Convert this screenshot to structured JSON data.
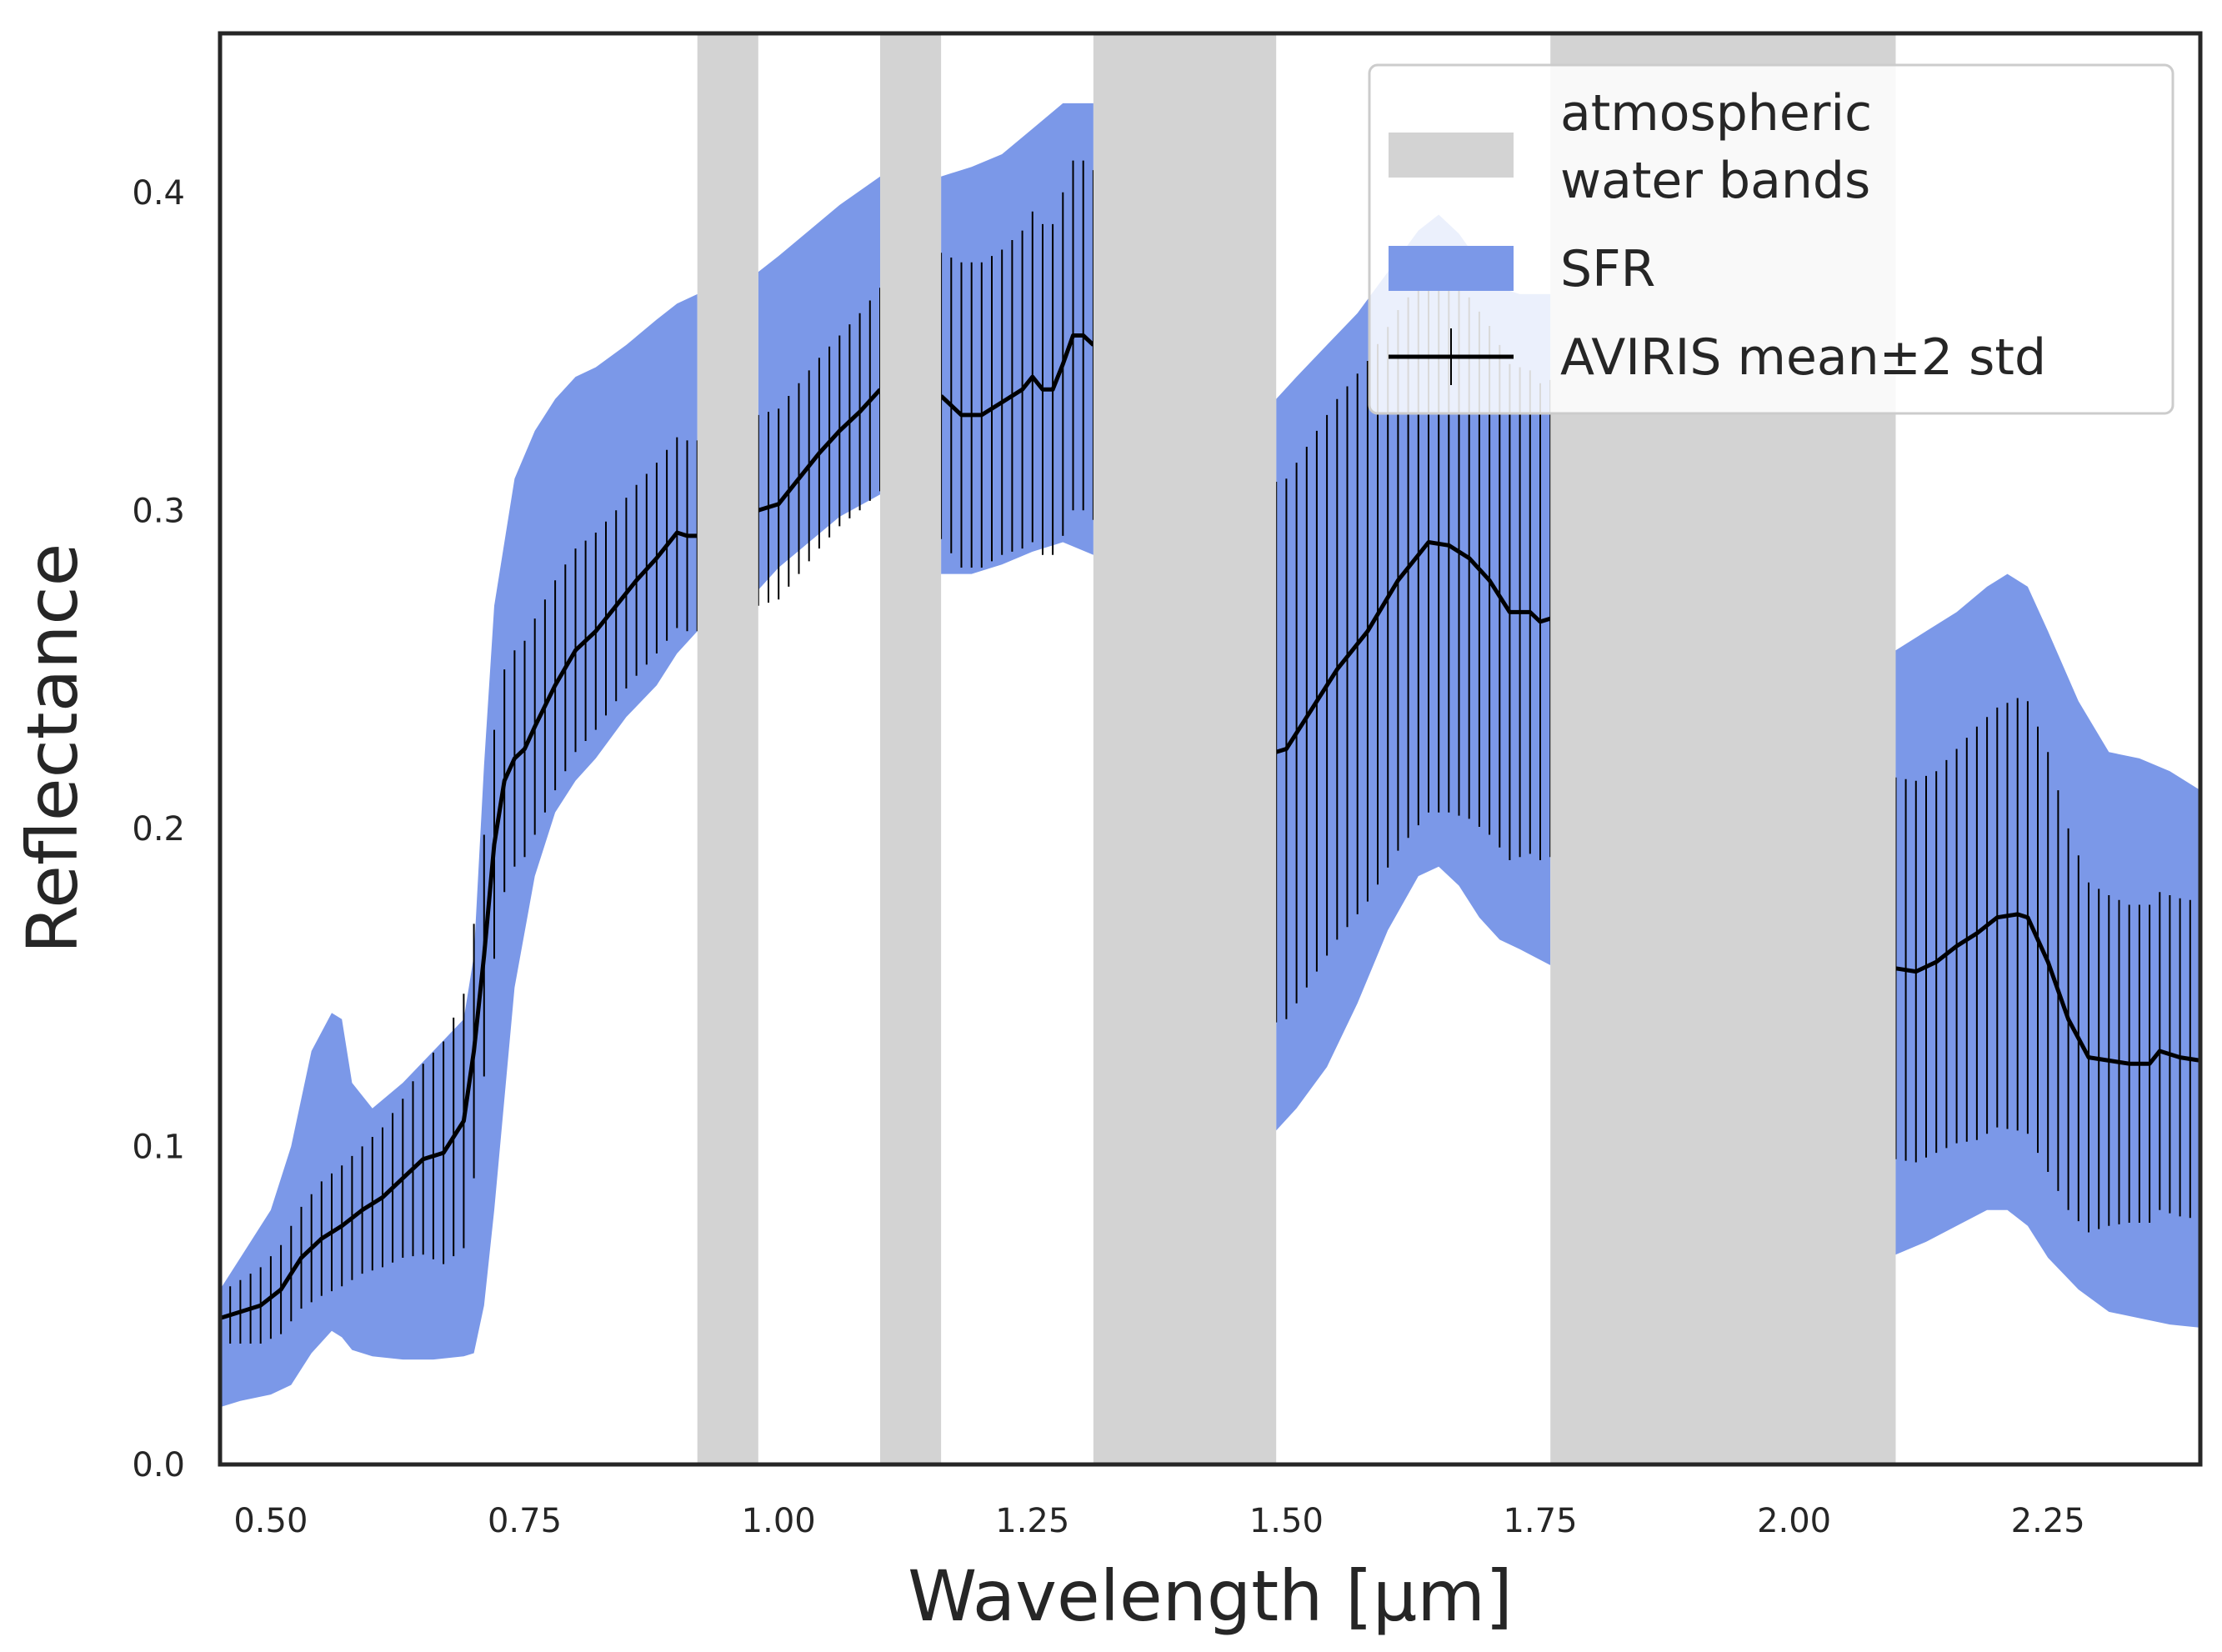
{
  "chart_data": {
    "type": "line",
    "xlabel": "Wavelength [µm]",
    "ylabel": "Reflectance",
    "xlim": [
      0.45,
      2.4
    ],
    "ylim": [
      0.0,
      0.45
    ],
    "xticks": [
      0.5,
      0.75,
      1.0,
      1.25,
      1.5,
      1.75,
      2.0,
      2.25
    ],
    "xtick_labels": [
      "0.50",
      "0.75",
      "1.00",
      "1.25",
      "1.50",
      "1.75",
      "2.00",
      "2.25"
    ],
    "yticks": [
      0.0,
      0.1,
      0.2,
      0.3,
      0.4
    ],
    "ytick_labels": [
      "0.0",
      "0.1",
      "0.2",
      "0.3",
      "0.4"
    ],
    "grid": false,
    "legend_position": "top-right",
    "legend": [
      {
        "key": "water",
        "label_lines": [
          "atmospheric",
          "water bands"
        ],
        "color": "#d3d3d3",
        "kind": "patch"
      },
      {
        "key": "sfr",
        "label_lines": [
          "SFR"
        ],
        "color": "#7b98e8",
        "kind": "patch"
      },
      {
        "key": "aviris",
        "label_lines": [
          "AVIRIS mean±2 std"
        ],
        "color": "#000000",
        "kind": "errorbar"
      }
    ],
    "water_bands": [
      [
        0.92,
        0.98
      ],
      [
        1.1,
        1.16
      ],
      [
        1.31,
        1.49
      ],
      [
        1.76,
        2.1
      ]
    ],
    "sfr": {
      "name": "SFR",
      "color": "#7b98e8",
      "segments": [
        {
          "x": [
            0.45,
            0.47,
            0.5,
            0.52,
            0.54,
            0.56,
            0.57,
            0.58,
            0.6,
            0.63,
            0.66,
            0.69,
            0.7,
            0.71,
            0.72,
            0.74,
            0.76,
            0.78,
            0.8,
            0.82,
            0.85,
            0.88,
            0.9,
            0.92
          ],
          "upper": [
            0.055,
            0.065,
            0.08,
            0.1,
            0.13,
            0.142,
            0.14,
            0.12,
            0.112,
            0.12,
            0.13,
            0.14,
            0.16,
            0.22,
            0.27,
            0.31,
            0.325,
            0.335,
            0.342,
            0.345,
            0.352,
            0.36,
            0.365,
            0.368
          ],
          "lower": [
            0.018,
            0.02,
            0.022,
            0.025,
            0.035,
            0.042,
            0.04,
            0.036,
            0.034,
            0.033,
            0.033,
            0.034,
            0.035,
            0.05,
            0.08,
            0.15,
            0.185,
            0.205,
            0.215,
            0.222,
            0.235,
            0.245,
            0.255,
            0.262
          ]
        },
        {
          "x": [
            0.98,
            1.0,
            1.03,
            1.06,
            1.1
          ],
          "upper": [
            0.375,
            0.38,
            0.388,
            0.396,
            0.405
          ],
          "lower": [
            0.275,
            0.282,
            0.29,
            0.298,
            0.305
          ]
        },
        {
          "x": [
            1.16,
            1.19,
            1.22,
            1.25,
            1.28,
            1.31
          ],
          "upper": [
            0.405,
            0.408,
            0.412,
            0.42,
            0.428,
            0.428
          ],
          "lower": [
            0.28,
            0.28,
            0.283,
            0.287,
            0.29,
            0.286
          ]
        },
        {
          "x": [
            1.49,
            1.51,
            1.54,
            1.57,
            1.6,
            1.63,
            1.65,
            1.67,
            1.69,
            1.71,
            1.73,
            1.76
          ],
          "upper": [
            0.335,
            0.342,
            0.352,
            0.362,
            0.375,
            0.388,
            0.393,
            0.387,
            0.378,
            0.37,
            0.368,
            0.368
          ],
          "lower": [
            0.105,
            0.112,
            0.125,
            0.145,
            0.168,
            0.185,
            0.188,
            0.182,
            0.172,
            0.165,
            0.162,
            0.157
          ]
        },
        {
          "x": [
            2.1,
            2.13,
            2.16,
            2.19,
            2.21,
            2.23,
            2.25,
            2.28,
            2.31,
            2.34,
            2.37,
            2.4
          ],
          "upper": [
            0.256,
            0.262,
            0.268,
            0.276,
            0.28,
            0.276,
            0.262,
            0.24,
            0.224,
            0.222,
            0.218,
            0.212
          ],
          "lower": [
            0.066,
            0.07,
            0.075,
            0.08,
            0.08,
            0.075,
            0.065,
            0.055,
            0.048,
            0.046,
            0.044,
            0.043
          ]
        }
      ]
    },
    "aviris": {
      "name": "AVIRIS mean±2 std",
      "color": "#000000",
      "segments": [
        {
          "x": [
            0.45,
            0.47,
            0.49,
            0.51,
            0.53,
            0.55,
            0.57,
            0.59,
            0.61,
            0.63,
            0.65,
            0.67,
            0.69,
            0.7,
            0.71,
            0.72,
            0.73,
            0.74,
            0.75,
            0.76,
            0.78,
            0.8,
            0.82,
            0.84,
            0.86,
            0.88,
            0.9,
            0.91,
            0.92
          ],
          "y": [
            0.046,
            0.048,
            0.05,
            0.055,
            0.065,
            0.071,
            0.075,
            0.08,
            0.084,
            0.09,
            0.096,
            0.098,
            0.108,
            0.13,
            0.16,
            0.195,
            0.215,
            0.222,
            0.225,
            0.232,
            0.245,
            0.256,
            0.262,
            0.27,
            0.278,
            0.285,
            0.293,
            0.292,
            0.292
          ],
          "err": [
            0.008,
            0.01,
            0.012,
            0.014,
            0.016,
            0.018,
            0.019,
            0.02,
            0.022,
            0.025,
            0.03,
            0.035,
            0.04,
            0.04,
            0.038,
            0.036,
            0.035,
            0.034,
            0.034,
            0.034,
            0.033,
            0.032,
            0.031,
            0.03,
            0.03,
            0.03,
            0.03,
            0.03,
            0.03
          ]
        },
        {
          "x": [
            0.98,
            1.0,
            1.02,
            1.04,
            1.06,
            1.08,
            1.1
          ],
          "y": [
            0.3,
            0.302,
            0.31,
            0.318,
            0.325,
            0.331,
            0.338
          ],
          "err": [
            0.03,
            0.03,
            0.03,
            0.03,
            0.03,
            0.031,
            0.032
          ]
        },
        {
          "x": [
            1.16,
            1.18,
            1.2,
            1.22,
            1.24,
            1.25,
            1.26,
            1.27,
            1.28,
            1.29,
            1.3,
            1.31
          ],
          "y": [
            0.336,
            0.33,
            0.33,
            0.334,
            0.338,
            0.342,
            0.338,
            0.338,
            0.346,
            0.355,
            0.355,
            0.352
          ],
          "err": [
            0.045,
            0.048,
            0.048,
            0.048,
            0.05,
            0.052,
            0.052,
            0.052,
            0.054,
            0.055,
            0.055,
            0.055
          ]
        },
        {
          "x": [
            1.49,
            1.5,
            1.52,
            1.55,
            1.58,
            1.61,
            1.64,
            1.66,
            1.68,
            1.7,
            1.72,
            1.74,
            1.75,
            1.76
          ],
          "y": [
            0.224,
            0.225,
            0.235,
            0.25,
            0.262,
            0.278,
            0.29,
            0.289,
            0.285,
            0.278,
            0.268,
            0.268,
            0.265,
            0.266
          ],
          "err": [
            0.085,
            0.085,
            0.085,
            0.085,
            0.085,
            0.085,
            0.085,
            0.084,
            0.082,
            0.08,
            0.078,
            0.076,
            0.075,
            0.075
          ]
        },
        {
          "x": [
            2.1,
            2.12,
            2.14,
            2.16,
            2.18,
            2.2,
            2.22,
            2.23,
            2.25,
            2.27,
            2.29,
            2.31,
            2.33,
            2.35,
            2.36,
            2.38,
            2.4
          ],
          "y": [
            0.156,
            0.155,
            0.158,
            0.163,
            0.167,
            0.172,
            0.173,
            0.172,
            0.158,
            0.14,
            0.128,
            0.127,
            0.126,
            0.126,
            0.13,
            0.128,
            0.127
          ],
          "err": [
            0.06,
            0.06,
            0.06,
            0.062,
            0.065,
            0.066,
            0.068,
            0.068,
            0.066,
            0.06,
            0.055,
            0.052,
            0.05,
            0.05,
            0.05,
            0.05,
            0.05
          ]
        }
      ]
    }
  }
}
